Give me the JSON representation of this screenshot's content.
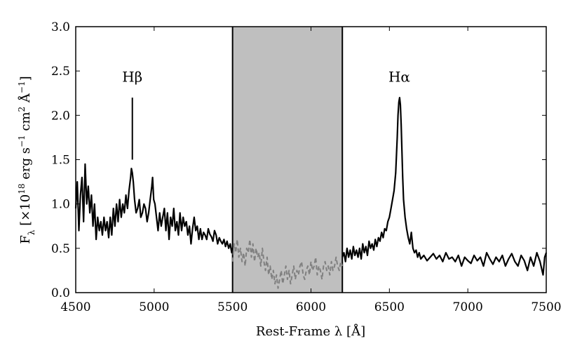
{
  "chart_data": {
    "type": "line",
    "xlabel": "Rest-Frame λ [Å]",
    "ylabel": "F_λ [×10^18 erg s^−1 cm^2 Å^−1]",
    "ylabel_parts": {
      "f": "F",
      "f_sub": "λ",
      "a": " [×10",
      "a_sup": "18",
      "b": " erg s",
      "b_sup": "−1",
      "c": " cm",
      "c_sup": "2",
      "d": " Å",
      "d_sup": "−1",
      "e": "]"
    },
    "xlim": [
      4500,
      7500
    ],
    "ylim": [
      0.0,
      3.0
    ],
    "x_ticks": [
      4500,
      5000,
      5500,
      6000,
      6500,
      7000,
      7500
    ],
    "x_tick_labels": [
      "4500",
      "5000",
      "5500",
      "6000",
      "6500",
      "7000",
      "7500"
    ],
    "y_ticks": [
      0.0,
      0.5,
      1.0,
      1.5,
      2.0,
      2.5,
      3.0
    ],
    "y_tick_labels": [
      "0.0",
      "0.5",
      "1.0",
      "1.5",
      "2.0",
      "2.5",
      "3.0"
    ],
    "grid": false,
    "shaded_region": {
      "x_start": 5500,
      "x_end": 6200,
      "color": "#bfbfbf"
    },
    "annotations": [
      {
        "label": "Hβ",
        "x": 4861,
        "y": 2.38,
        "marker": [
          1.5,
          2.2
        ]
      },
      {
        "label": "Hα",
        "x": 6563,
        "y": 2.38
      }
    ],
    "series": [
      {
        "style": "solid",
        "color": "#000000",
        "x": [
          4500,
          4510,
          4520,
          4530,
          4540,
          4550,
          4560,
          4570,
          4580,
          4590,
          4600,
          4610,
          4620,
          4630,
          4640,
          4650,
          4660,
          4670,
          4680,
          4690,
          4700,
          4710,
          4720,
          4730,
          4740,
          4750,
          4760,
          4770,
          4780,
          4790,
          4800,
          4810,
          4820,
          4830,
          4840,
          4850,
          4855,
          4861,
          4867,
          4875,
          4885,
          4895,
          4905,
          4915,
          4925,
          4935,
          4945,
          4955,
          4965,
          4975,
          4985,
          4990,
          4997,
          5005,
          5015,
          5025,
          5035,
          5045,
          5055,
          5065,
          5075,
          5085,
          5095,
          5105,
          5115,
          5125,
          5135,
          5145,
          5155,
          5165,
          5175,
          5185,
          5195,
          5205,
          5215,
          5225,
          5235,
          5245,
          5255,
          5265,
          5275,
          5285,
          5295,
          5305,
          5315,
          5325,
          5335,
          5345,
          5355,
          5365,
          5375,
          5385,
          5395,
          5405,
          5415,
          5425,
          5435,
          5445,
          5455,
          5465,
          5475,
          5485,
          5495,
          5500
        ],
        "y": [
          0.95,
          1.25,
          0.7,
          1.1,
          1.3,
          0.8,
          1.45,
          1.0,
          1.2,
          0.9,
          1.1,
          0.75,
          1.0,
          0.6,
          0.85,
          0.7,
          0.8,
          0.65,
          0.85,
          0.7,
          0.8,
          0.62,
          0.85,
          0.65,
          0.95,
          0.75,
          1.0,
          0.8,
          1.05,
          0.85,
          1.0,
          0.9,
          1.1,
          0.95,
          1.15,
          1.3,
          1.4,
          1.35,
          1.25,
          1.05,
          0.9,
          0.95,
          1.05,
          0.85,
          0.9,
          1.0,
          0.95,
          0.8,
          0.9,
          1.05,
          1.2,
          1.3,
          1.05,
          1.0,
          0.85,
          0.7,
          0.9,
          0.75,
          0.85,
          0.95,
          0.7,
          0.9,
          0.6,
          0.85,
          0.75,
          0.95,
          0.7,
          0.8,
          0.65,
          0.9,
          0.7,
          0.85,
          0.75,
          0.8,
          0.65,
          0.75,
          0.55,
          0.72,
          0.85,
          0.7,
          0.75,
          0.6,
          0.72,
          0.6,
          0.68,
          0.65,
          0.6,
          0.72,
          0.66,
          0.63,
          0.58,
          0.7,
          0.65,
          0.55,
          0.62,
          0.58,
          0.55,
          0.6,
          0.52,
          0.58,
          0.5,
          0.55,
          0.45,
          0.5
        ]
      },
      {
        "style": "dashed",
        "color": "#808080",
        "x": [
          5500,
          5510,
          5520,
          5530,
          5540,
          5550,
          5560,
          5570,
          5580,
          5590,
          5600,
          5610,
          5620,
          5630,
          5640,
          5650,
          5660,
          5670,
          5680,
          5690,
          5700,
          5710,
          5720,
          5730,
          5740,
          5750,
          5760,
          5770,
          5780,
          5790,
          5800,
          5810,
          5820,
          5830,
          5840,
          5850,
          5860,
          5870,
          5880,
          5890,
          5900,
          5910,
          5920,
          5930,
          5940,
          5950,
          5960,
          5970,
          5980,
          5990,
          6000,
          6010,
          6020,
          6030,
          6040,
          6050,
          6060,
          6070,
          6080,
          6090,
          6100,
          6110,
          6120,
          6130,
          6140,
          6150,
          6160,
          6170,
          6180,
          6190,
          6200
        ],
        "y": [
          0.35,
          0.55,
          0.45,
          0.6,
          0.4,
          0.5,
          0.35,
          0.45,
          0.3,
          0.5,
          0.45,
          0.6,
          0.4,
          0.55,
          0.35,
          0.5,
          0.4,
          0.45,
          0.3,
          0.5,
          0.35,
          0.25,
          0.4,
          0.2,
          0.3,
          0.15,
          0.25,
          0.1,
          0.2,
          0.05,
          0.15,
          0.25,
          0.1,
          0.2,
          0.3,
          0.15,
          0.25,
          0.1,
          0.2,
          0.3,
          0.15,
          0.25,
          0.2,
          0.3,
          0.35,
          0.2,
          0.15,
          0.25,
          0.3,
          0.2,
          0.35,
          0.25,
          0.3,
          0.4,
          0.2,
          0.3,
          0.25,
          0.15,
          0.3,
          0.35,
          0.25,
          0.3,
          0.2,
          0.35,
          0.25,
          0.3,
          0.4,
          0.3,
          0.25,
          0.35,
          0.3
        ]
      },
      {
        "style": "solid",
        "color": "#000000",
        "x": [
          6200,
          6210,
          6220,
          6230,
          6240,
          6250,
          6260,
          6270,
          6280,
          6290,
          6300,
          6310,
          6320,
          6330,
          6340,
          6350,
          6360,
          6370,
          6380,
          6390,
          6400,
          6410,
          6420,
          6430,
          6440,
          6450,
          6460,
          6470,
          6480,
          6490,
          6500,
          6510,
          6520,
          6530,
          6540,
          6545,
          6550,
          6555,
          6560,
          6565,
          6570,
          6575,
          6580,
          6585,
          6590,
          6600,
          6610,
          6620,
          6630,
          6640,
          6650,
          6660,
          6670,
          6680,
          6690,
          6700,
          6720,
          6740,
          6760,
          6780,
          6800,
          6820,
          6840,
          6860,
          6880,
          6900,
          6920,
          6940,
          6960,
          6980,
          7000,
          7020,
          7040,
          7060,
          7080,
          7100,
          7120,
          7140,
          7160,
          7180,
          7200,
          7220,
          7240,
          7260,
          7280,
          7300,
          7320,
          7340,
          7360,
          7380,
          7400,
          7420,
          7440,
          7460,
          7480,
          7490,
          7500
        ],
        "y": [
          0.4,
          0.45,
          0.35,
          0.5,
          0.4,
          0.48,
          0.38,
          0.52,
          0.42,
          0.48,
          0.4,
          0.5,
          0.38,
          0.55,
          0.45,
          0.52,
          0.42,
          0.58,
          0.5,
          0.55,
          0.48,
          0.6,
          0.52,
          0.62,
          0.58,
          0.68,
          0.62,
          0.72,
          0.7,
          0.8,
          0.85,
          0.95,
          1.05,
          1.15,
          1.35,
          1.55,
          1.75,
          2.0,
          2.15,
          2.2,
          2.12,
          1.9,
          1.6,
          1.3,
          1.05,
          0.85,
          0.72,
          0.62,
          0.55,
          0.68,
          0.5,
          0.45,
          0.48,
          0.4,
          0.45,
          0.38,
          0.42,
          0.36,
          0.4,
          0.44,
          0.38,
          0.42,
          0.35,
          0.45,
          0.38,
          0.4,
          0.35,
          0.42,
          0.3,
          0.4,
          0.36,
          0.33,
          0.42,
          0.36,
          0.4,
          0.3,
          0.45,
          0.38,
          0.32,
          0.4,
          0.35,
          0.42,
          0.3,
          0.38,
          0.44,
          0.35,
          0.3,
          0.42,
          0.36,
          0.25,
          0.4,
          0.3,
          0.45,
          0.35,
          0.2,
          0.4,
          0.45
        ]
      }
    ]
  }
}
